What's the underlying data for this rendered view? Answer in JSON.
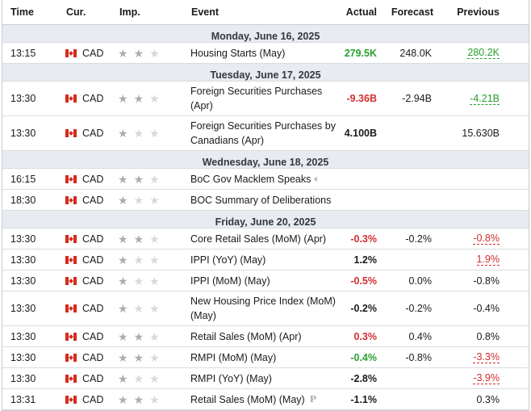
{
  "headers": {
    "time": "Time",
    "currency": "Cur.",
    "importance": "Imp.",
    "event": "Event",
    "actual": "Actual",
    "forecast": "Forecast",
    "previous": "Previous"
  },
  "colors": {
    "positive": "#299f2e",
    "negative": "#d22e2e",
    "day_header_bg": "#e8ebef"
  },
  "days": [
    "Monday, June 16, 2025",
    "Tuesday, June 17, 2025",
    "Wednesday, June 18, 2025",
    "Friday, June 20, 2025"
  ],
  "events": [
    {
      "time": "13:15",
      "currency": "CAD",
      "importance": 2,
      "event": "Housing Starts (May)",
      "actual": "279.5K",
      "actual_color": "green",
      "forecast": "248.0K",
      "previous": "280.2K",
      "previous_style": "revised-green",
      "flag_icon": "canada-flag-icon"
    },
    {
      "time": "13:30",
      "currency": "CAD",
      "importance": 2,
      "event": "Foreign Securities Purchases (Apr)",
      "actual": "-9.36B",
      "actual_color": "red",
      "forecast": "-2.94B",
      "previous": "-4.21B",
      "previous_style": "revised-green",
      "flag_icon": "canada-flag-icon"
    },
    {
      "time": "13:30",
      "currency": "CAD",
      "importance": 1,
      "event": "Foreign Securities Purchases by Canadians (Apr)",
      "actual": "4.100B",
      "actual_color": "black",
      "forecast": "",
      "previous": "15.630B",
      "previous_style": "plain",
      "flag_icon": "canada-flag-icon"
    },
    {
      "time": "16:15",
      "currency": "CAD",
      "importance": 2,
      "event": "BoC Gov Macklem Speaks",
      "actual": "",
      "actual_color": "black",
      "forecast": "",
      "previous": "",
      "previous_style": "plain",
      "flag_icon": "canada-flag-icon",
      "marker_icon": "speaker-icon"
    },
    {
      "time": "18:30",
      "currency": "CAD",
      "importance": 1,
      "event": "BOC Summary of Deliberations",
      "actual": "",
      "actual_color": "black",
      "forecast": "",
      "previous": "",
      "previous_style": "plain",
      "flag_icon": "canada-flag-icon"
    },
    {
      "time": "13:30",
      "currency": "CAD",
      "importance": 2,
      "event": "Core Retail Sales (MoM) (Apr)",
      "actual": "-0.3%",
      "actual_color": "red",
      "forecast": "-0.2%",
      "previous": "-0.8%",
      "previous_style": "revised-red",
      "flag_icon": "canada-flag-icon"
    },
    {
      "time": "13:30",
      "currency": "CAD",
      "importance": 1,
      "event": "IPPI (YoY) (May)",
      "actual": "1.2%",
      "actual_color": "black",
      "forecast": "",
      "previous": "1.9%",
      "previous_style": "revised-red",
      "flag_icon": "canada-flag-icon"
    },
    {
      "time": "13:30",
      "currency": "CAD",
      "importance": 1,
      "event": "IPPI (MoM) (May)",
      "actual": "-0.5%",
      "actual_color": "red",
      "forecast": "0.0%",
      "previous": "-0.8%",
      "previous_style": "plain",
      "flag_icon": "canada-flag-icon"
    },
    {
      "time": "13:30",
      "currency": "CAD",
      "importance": 1,
      "event": "New Housing Price Index (MoM) (May)",
      "actual": "-0.2%",
      "actual_color": "black",
      "forecast": "-0.2%",
      "previous": "-0.4%",
      "previous_style": "plain",
      "flag_icon": "canada-flag-icon"
    },
    {
      "time": "13:30",
      "currency": "CAD",
      "importance": 2,
      "event": "Retail Sales (MoM) (Apr)",
      "actual": "0.3%",
      "actual_color": "red",
      "forecast": "0.4%",
      "previous": "0.8%",
      "previous_style": "plain",
      "flag_icon": "canada-flag-icon"
    },
    {
      "time": "13:30",
      "currency": "CAD",
      "importance": 2,
      "event": "RMPI (MoM) (May)",
      "actual": "-0.4%",
      "actual_color": "green",
      "forecast": "-0.8%",
      "previous": "-3.3%",
      "previous_style": "revised-red",
      "flag_icon": "canada-flag-icon"
    },
    {
      "time": "13:30",
      "currency": "CAD",
      "importance": 1,
      "event": "RMPI (YoY) (May)",
      "actual": "-2.8%",
      "actual_color": "black",
      "forecast": "",
      "previous": "-3.9%",
      "previous_style": "revised-red",
      "flag_icon": "canada-flag-icon"
    },
    {
      "time": "13:31",
      "currency": "CAD",
      "importance": 2,
      "event": "Retail Sales (MoM) (May)",
      "actual": "-1.1%",
      "actual_color": "black",
      "forecast": "",
      "previous": "0.3%",
      "previous_style": "plain",
      "flag_icon": "canada-flag-icon",
      "marker_icon": "preliminary-icon",
      "marker_text": "P"
    }
  ]
}
